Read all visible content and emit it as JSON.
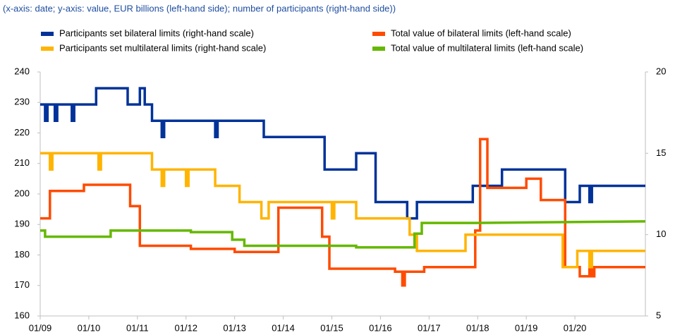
{
  "chart_data": {
    "type": "line",
    "subtitle": "(x-axis: date; y-axis: value, EUR billions (left-hand side); number of participants (right-hand side))",
    "legend": "top",
    "xlim": [
      2009,
      2021.45
    ],
    "xticks": [
      {
        "value": 2009,
        "label": "01/09"
      },
      {
        "value": 2010,
        "label": "01/10"
      },
      {
        "value": 2011,
        "label": "01/11"
      },
      {
        "value": 2012,
        "label": "01/12"
      },
      {
        "value": 2013,
        "label": "01/13"
      },
      {
        "value": 2014,
        "label": "01/14"
      },
      {
        "value": 2015,
        "label": "01/15"
      },
      {
        "value": 2016,
        "label": "01/16"
      },
      {
        "value": 2017,
        "label": "01/17"
      },
      {
        "value": 2018,
        "label": "01/18"
      },
      {
        "value": 2019,
        "label": "01/19"
      },
      {
        "value": 2020,
        "label": "01/20"
      }
    ],
    "ylim": [
      160,
      240
    ],
    "yticks": [
      160,
      170,
      180,
      190,
      200,
      210,
      220,
      230,
      240
    ],
    "y2lim": [
      5,
      20
    ],
    "y2ticks": [
      5,
      10,
      15,
      20
    ],
    "series": [
      {
        "name": "Participants set bilateral limits (right-hand scale)",
        "color": "#003299",
        "axis": "y2",
        "x": [
          2009,
          2009.1,
          2009.1,
          2009.15,
          2009.15,
          2009.3,
          2009.3,
          2009.35,
          2009.35,
          2009.65,
          2009.65,
          2009.7,
          2009.7,
          2010.15,
          2010.15,
          2010.8,
          2010.8,
          2011.05,
          2011.05,
          2011.15,
          2011.15,
          2011.3,
          2011.3,
          2011.5,
          2011.5,
          2011.55,
          2011.55,
          2012.6,
          2012.6,
          2012.65,
          2012.65,
          2013.6,
          2013.6,
          2013.8,
          2014.85,
          2014.85,
          2015.5,
          2015.5,
          2015.9,
          2015.9,
          2016.55,
          2016.55,
          2016.75,
          2016.75,
          2017.9,
          2017.9,
          2018.5,
          2018.5,
          2019.8,
          2019.8,
          2020.1,
          2020.1,
          2020.3,
          2020.3,
          2020.35,
          2020.35,
          2021.45
        ],
        "values": [
          18,
          18,
          17,
          17,
          18,
          18,
          17,
          17,
          18,
          18,
          17,
          17,
          18,
          18,
          19,
          19,
          18,
          18,
          19,
          19,
          18,
          18,
          17,
          17,
          16,
          16,
          17,
          17,
          16,
          16,
          17,
          17,
          16,
          16,
          16,
          14,
          14,
          15,
          15,
          12,
          12,
          11,
          11,
          12,
          12,
          13,
          13,
          14,
          14,
          12,
          12,
          13,
          13,
          12,
          12,
          13,
          13
        ]
      },
      {
        "name": "Total value of bilateral limits (left-hand scale)",
        "color": "#ff4b00",
        "x": [
          2009,
          2009.2,
          2009.2,
          2009.9,
          2009.9,
          2010.85,
          2010.85,
          2011.05,
          2011.05,
          2012.1,
          2012.1,
          2013.0,
          2013.0,
          2013.9,
          2013.9,
          2014.8,
          2014.8,
          2014.95,
          2014.95,
          2016.3,
          2016.3,
          2016.45,
          2016.45,
          2016.5,
          2016.5,
          2016.9,
          2016.9,
          2017.95,
          2017.95,
          2018.05,
          2018.05,
          2018.2,
          2018.2,
          2019.0,
          2019.0,
          2019.3,
          2019.3,
          2019.8,
          2019.8,
          2020.1,
          2020.1,
          2020.3,
          2020.3,
          2020.35,
          2020.35,
          2020.4,
          2020.4,
          2021.45
        ],
        "values": [
          192,
          192,
          201,
          201,
          203,
          203,
          196,
          196,
          183,
          183,
          182,
          182,
          181,
          181,
          195.5,
          195.5,
          186,
          186,
          175.5,
          175.5,
          174.5,
          174.5,
          170,
          170,
          174.5,
          174.5,
          176,
          176,
          188,
          188,
          218,
          218,
          202,
          202,
          205,
          205,
          198,
          198,
          176,
          176,
          173,
          173,
          176,
          176,
          173,
          173,
          176,
          176
        ]
      },
      {
        "name": "Participants set multilateral limits (right-hand scale)",
        "color": "#ffb400",
        "axis": "y2",
        "x": [
          2009,
          2009.2,
          2009.2,
          2009.25,
          2009.25,
          2010.2,
          2010.2,
          2010.25,
          2010.25,
          2011.3,
          2011.3,
          2011.5,
          2011.5,
          2011.55,
          2011.55,
          2012.0,
          2012.0,
          2012.05,
          2012.05,
          2012.6,
          2012.6,
          2013.1,
          2013.1,
          2013.55,
          2013.55,
          2013.7,
          2013.7,
          2015.0,
          2015.0,
          2015.05,
          2015.05,
          2015.5,
          2015.5,
          2016.6,
          2016.6,
          2016.75,
          2016.75,
          2017.75,
          2017.75,
          2019.75,
          2019.75,
          2020.05,
          2020.05,
          2020.3,
          2020.3,
          2020.35,
          2020.35,
          2021.45
        ],
        "values": [
          15,
          15,
          14,
          14,
          15,
          15,
          14,
          14,
          15,
          15,
          14,
          14,
          13,
          13,
          14,
          14,
          13,
          13,
          14,
          14,
          13,
          13,
          12,
          12,
          11,
          11,
          12,
          12,
          11,
          11,
          12,
          12,
          11,
          11,
          10,
          10,
          9,
          9,
          10,
          10,
          8,
          8,
          9,
          9,
          8,
          8,
          9,
          9
        ]
      },
      {
        "name": "Total value of multilateral limits (left-hand scale)",
        "color": "#65b800",
        "x": [
          2009,
          2009.1,
          2009.1,
          2010.45,
          2010.45,
          2012.1,
          2012.1,
          2012.95,
          2012.95,
          2013.2,
          2013.2,
          2015.5,
          2015.5,
          2016.7,
          2016.7,
          2016.85,
          2016.85,
          2017.95,
          2017.95,
          2021.45
        ],
        "values": [
          188,
          188,
          186,
          186,
          188,
          188,
          187.5,
          187.5,
          185,
          185,
          183,
          183,
          182.5,
          182.5,
          187,
          187,
          190.5,
          190.5,
          190.5,
          191
        ]
      }
    ]
  }
}
